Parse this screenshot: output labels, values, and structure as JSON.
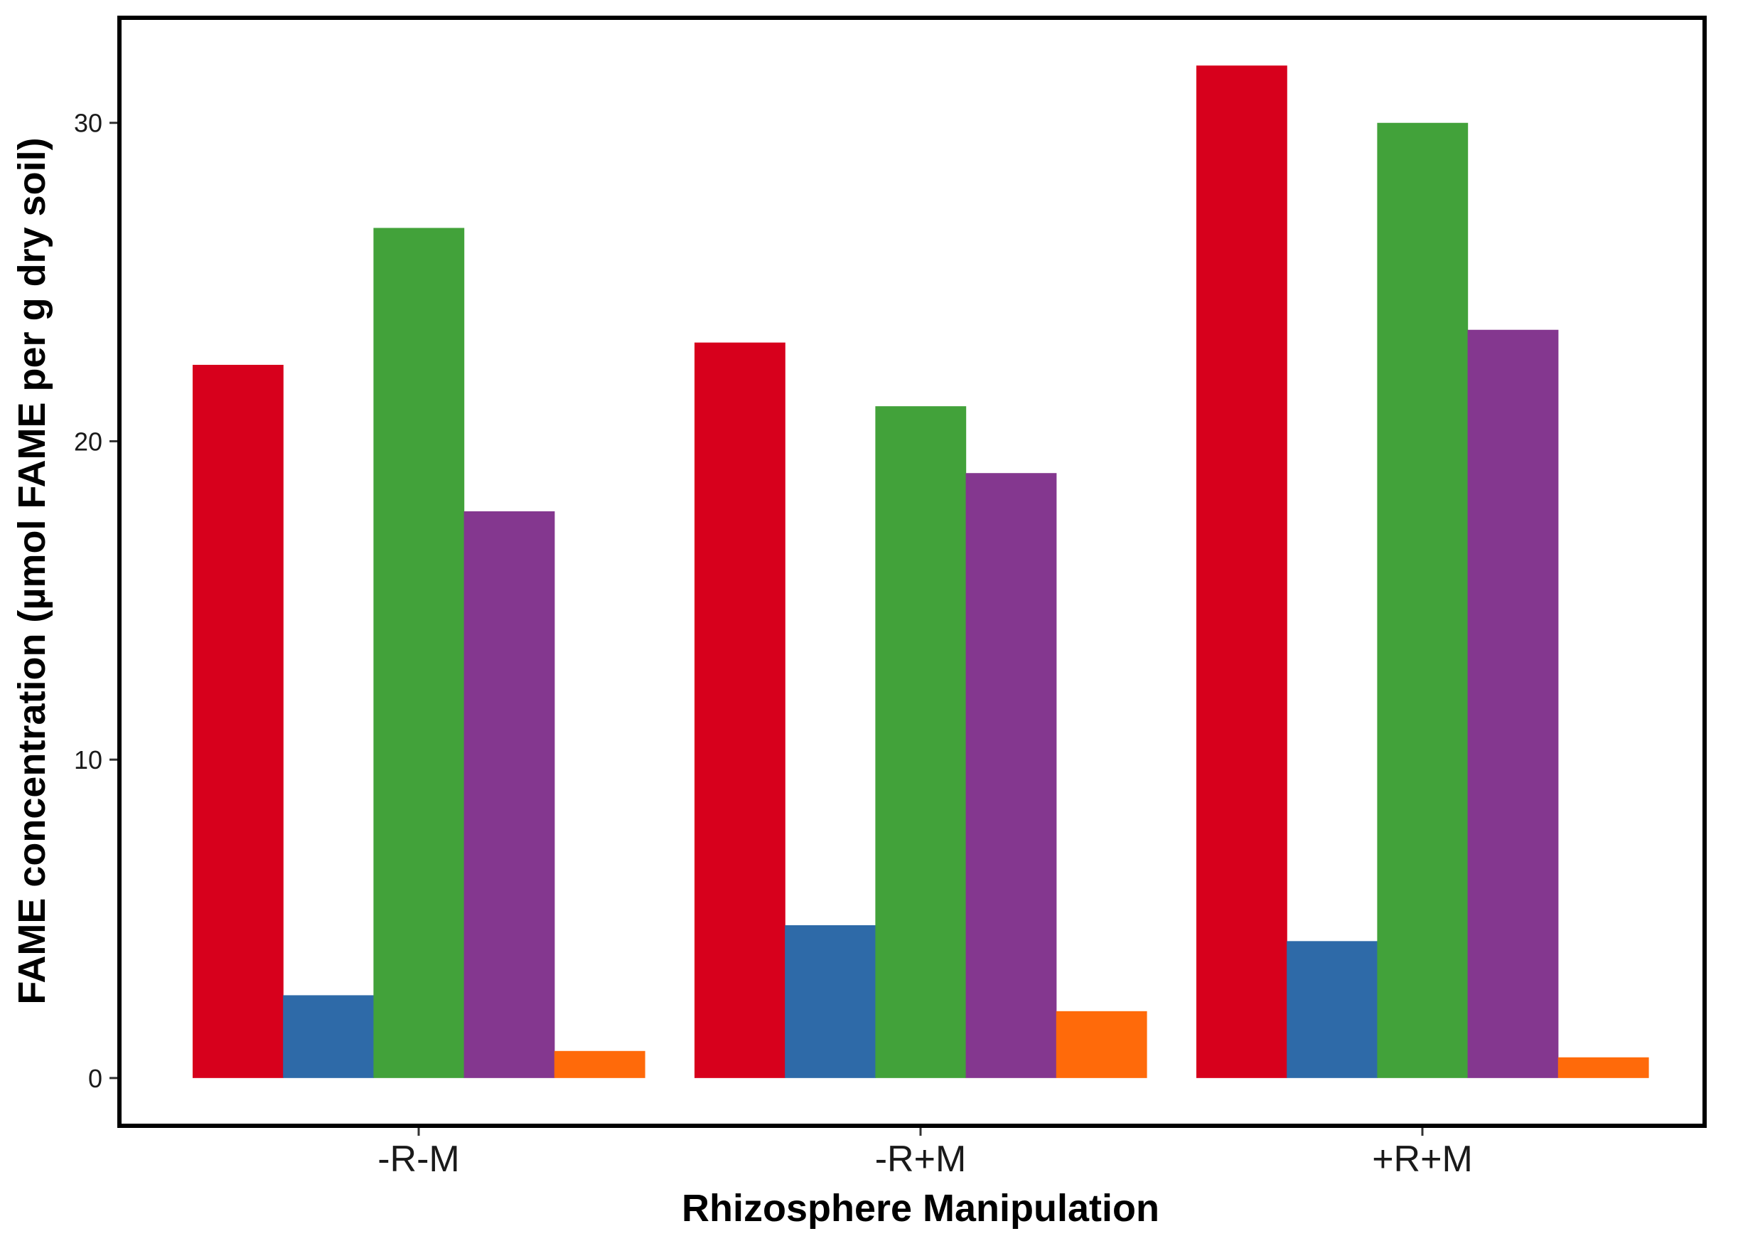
{
  "chart_data": {
    "type": "bar",
    "title": "",
    "xlabel": "Rhizosphere Manipulation",
    "ylabel": "FAME concentration (µmol FAME per g dry soil)",
    "categories": [
      "-R-M",
      "-R+M",
      "+R+M"
    ],
    "ylim": [
      -1.5,
      33.3
    ],
    "yticks": [
      0,
      10,
      20,
      30
    ],
    "grid": false,
    "legend": "none",
    "series": [
      {
        "color": "#D7001C",
        "values": [
          22.4,
          23.1,
          31.8
        ]
      },
      {
        "color": "#2E6AA8",
        "values": [
          2.6,
          4.8,
          4.3
        ]
      },
      {
        "color": "#42A23A",
        "values": [
          26.7,
          21.1,
          30.0
        ]
      },
      {
        "color": "#84378F",
        "values": [
          17.8,
          19.0,
          23.5
        ]
      },
      {
        "color": "#FF6A0A",
        "values": [
          0.85,
          2.1,
          0.65
        ]
      }
    ]
  }
}
